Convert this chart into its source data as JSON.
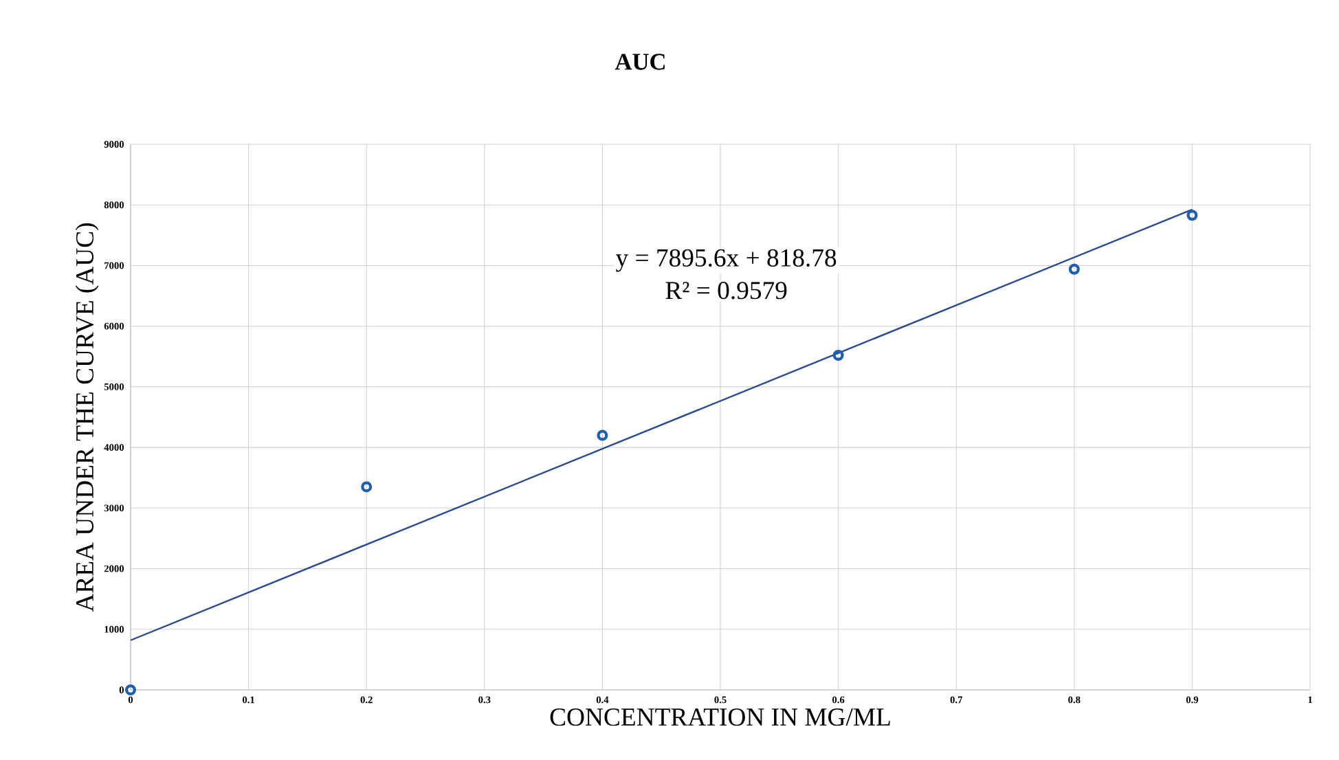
{
  "chart_data": {
    "type": "scatter",
    "title": "AUC",
    "xlabel": "CONCENTRATION IN MG/ML",
    "ylabel": "AREA UNDER THE CURVE (AUC)",
    "series": [
      {
        "color": "#1f5fae",
        "x": [
          0,
          0.2,
          0.4,
          0.6,
          0.8,
          0.9
        ],
        "values": [
          0,
          3350,
          4200,
          5520,
          6940,
          7830
        ],
        "marker": "circle"
      },
      {
        "type": "line",
        "color": "#2b4a8e",
        "x": [
          0,
          0.9
        ],
        "values": [
          819,
          7925
        ],
        "marker": "none"
      }
    ],
    "annotations": [
      "y = 7895.6x + 818.78",
      "R² = 0.9579"
    ],
    "xlim": [
      0,
      1
    ],
    "xticks": [
      0,
      0.1,
      0.2,
      0.3,
      0.4,
      0.5,
      0.6,
      0.7,
      0.8,
      0.9,
      1
    ],
    "ylim": [
      0,
      9000
    ],
    "yticks": [
      0,
      1000,
      2000,
      3000,
      4000,
      5000,
      6000,
      7000,
      8000,
      9000
    ],
    "grid": true
  }
}
